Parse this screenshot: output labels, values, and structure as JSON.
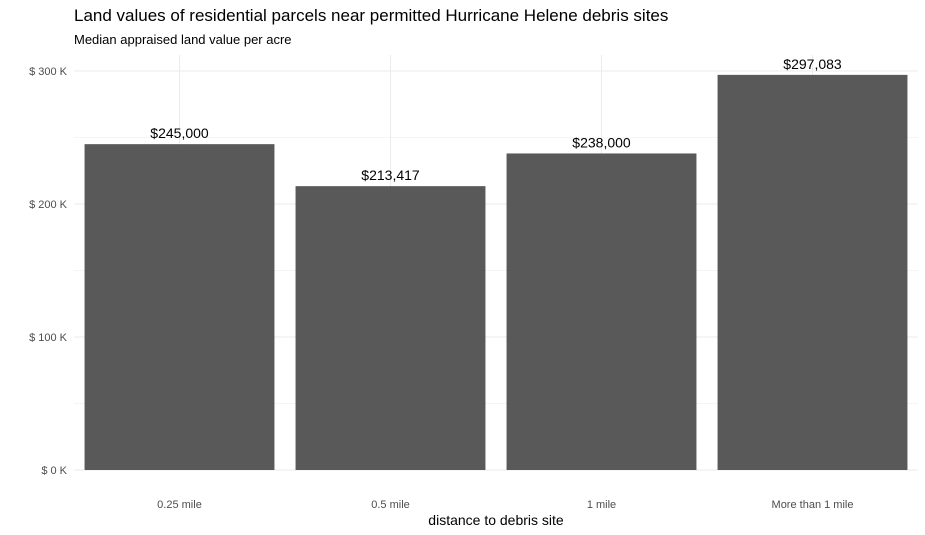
{
  "chart_data": {
    "type": "bar",
    "title": "Land values of residential parcels near permitted Hurricane Helene debris sites",
    "subtitle": "Median appraised land value per acre",
    "xlabel": "distance to debris site",
    "ylabel": "",
    "categories": [
      "0.25 mile",
      "0.5 mile",
      "1 mile",
      "More than 1 mile"
    ],
    "values": [
      245000,
      213417,
      238000,
      297083
    ],
    "data_labels": [
      "$245,000",
      "$213,417",
      "$238,000",
      "$297,083"
    ],
    "ylim": [
      0,
      300000
    ],
    "yticks": [
      0,
      100000,
      200000,
      300000
    ],
    "ytick_labels": [
      "$ 0 K",
      "$ 100 K",
      "$ 200 K",
      "$ 300 K"
    ],
    "grid": true,
    "legend": "none",
    "colors": {
      "bar": "#595959",
      "grid": "#ebebeb",
      "text": "#000000",
      "tick_text": "#4d4d4d"
    }
  }
}
